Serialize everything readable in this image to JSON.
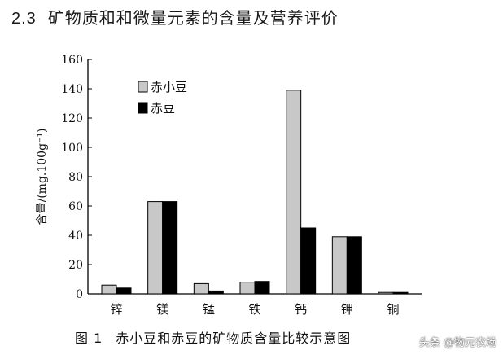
{
  "heading": {
    "number": "2.3",
    "text": "矿物质和和微量元素的含量及营养评价"
  },
  "chart_data": {
    "type": "bar",
    "categories": [
      "锌",
      "镁",
      "锰",
      "铁",
      "钙",
      "钾",
      "铜"
    ],
    "series": [
      {
        "name": "赤小豆",
        "values": [
          6,
          63,
          7,
          8,
          139,
          39,
          1
        ],
        "color": "#c8c8c8"
      },
      {
        "name": "赤豆",
        "values": [
          4,
          63,
          2,
          8.5,
          45,
          39,
          1
        ],
        "color": "#000000"
      }
    ],
    "ylabel": "含量/(mg.100g⁻¹)",
    "ylim": [
      0,
      160
    ],
    "yticks": [
      0,
      20,
      40,
      60,
      80,
      100,
      120,
      140,
      160
    ],
    "grid": false,
    "legend_position": "top-left"
  },
  "caption": {
    "figure_number": "图 1",
    "text": "赤小豆和赤豆的矿物质含量比较示意图"
  },
  "watermark": {
    "text": "头条 @物元农场"
  }
}
